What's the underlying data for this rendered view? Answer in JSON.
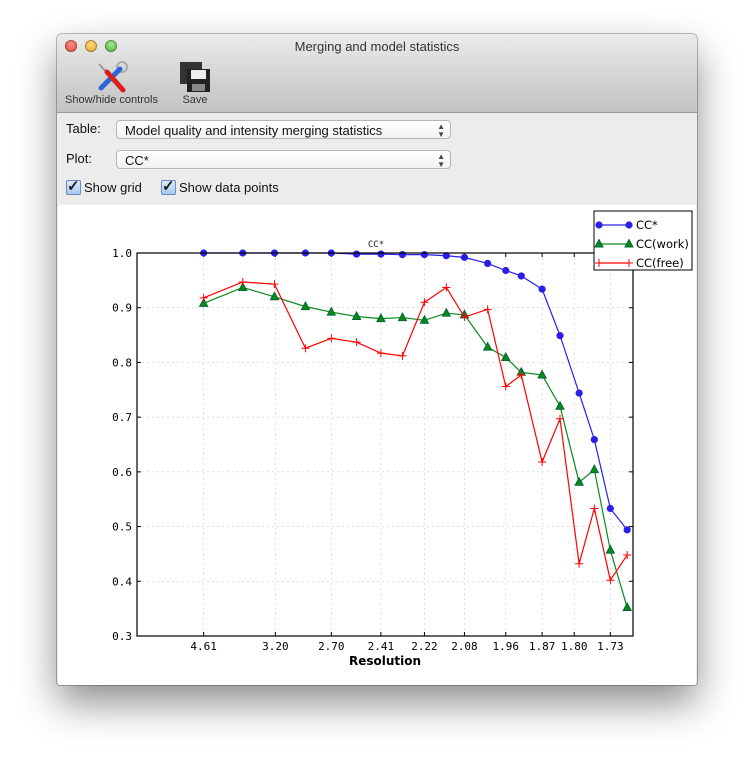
{
  "window": {
    "title": "Merging and model statistics"
  },
  "toolbar": {
    "show_hide_label": "Show/hide controls",
    "save_label": "Save"
  },
  "controls": {
    "table_label": "Table:",
    "table_value": "Model quality and intensity merging statistics",
    "plot_label": "Plot:",
    "plot_value": "CC*",
    "show_grid_label": "Show grid",
    "show_grid_checked": true,
    "show_points_label": "Show data points",
    "show_points_checked": true
  },
  "chart_data": {
    "type": "line",
    "title": "CC*",
    "xlabel": "Resolution",
    "ylabel": "",
    "x_scale": "1/d^2 (reciprocal square of resolution)",
    "xlim": [
      "inf",
      1.69
    ],
    "ylim": [
      0.3,
      1.0
    ],
    "grid": true,
    "legend": "top-right",
    "x_ticks": [
      "4.61",
      "3.20",
      "2.70",
      "2.41",
      "2.22",
      "2.08",
      "1.96",
      "1.87",
      "1.80",
      "1.73"
    ],
    "y_ticks": [
      "0.3",
      "0.4",
      "0.5",
      "0.6",
      "0.7",
      "0.8",
      "0.9",
      "1.0"
    ],
    "x": [
      4.61,
      3.66,
      3.21,
      2.9,
      2.7,
      2.54,
      2.41,
      2.31,
      2.22,
      2.14,
      2.08,
      2.01,
      1.96,
      1.92,
      1.87,
      1.83,
      1.79,
      1.76,
      1.73,
      1.7
    ],
    "series": [
      {
        "name": "CC*",
        "color": "#2b1ee8",
        "marker": "circle",
        "values": [
          1.0,
          1.0,
          1.0,
          1.0,
          1.0,
          0.998,
          0.998,
          0.997,
          0.997,
          0.995,
          0.992,
          0.981,
          0.968,
          0.958,
          0.934,
          0.849,
          0.744,
          0.659,
          0.533,
          0.494
        ]
      },
      {
        "name": "CC(work)",
        "color": "#0a8a1a",
        "marker": "triangle",
        "values": [
          0.908,
          0.937,
          0.92,
          0.902,
          0.892,
          0.884,
          0.88,
          0.882,
          0.877,
          0.89,
          0.887,
          0.828,
          0.809,
          0.782,
          0.777,
          0.72,
          0.581,
          0.604,
          0.457,
          0.352
        ]
      },
      {
        "name": "CC(free)",
        "color": "#ff0000",
        "marker": "plus",
        "values": [
          0.918,
          0.947,
          0.943,
          0.826,
          0.844,
          0.837,
          0.817,
          0.812,
          0.91,
          0.937,
          0.883,
          0.897,
          0.756,
          0.777,
          0.618,
          0.697,
          0.432,
          0.533,
          0.402,
          0.448
        ]
      }
    ]
  }
}
